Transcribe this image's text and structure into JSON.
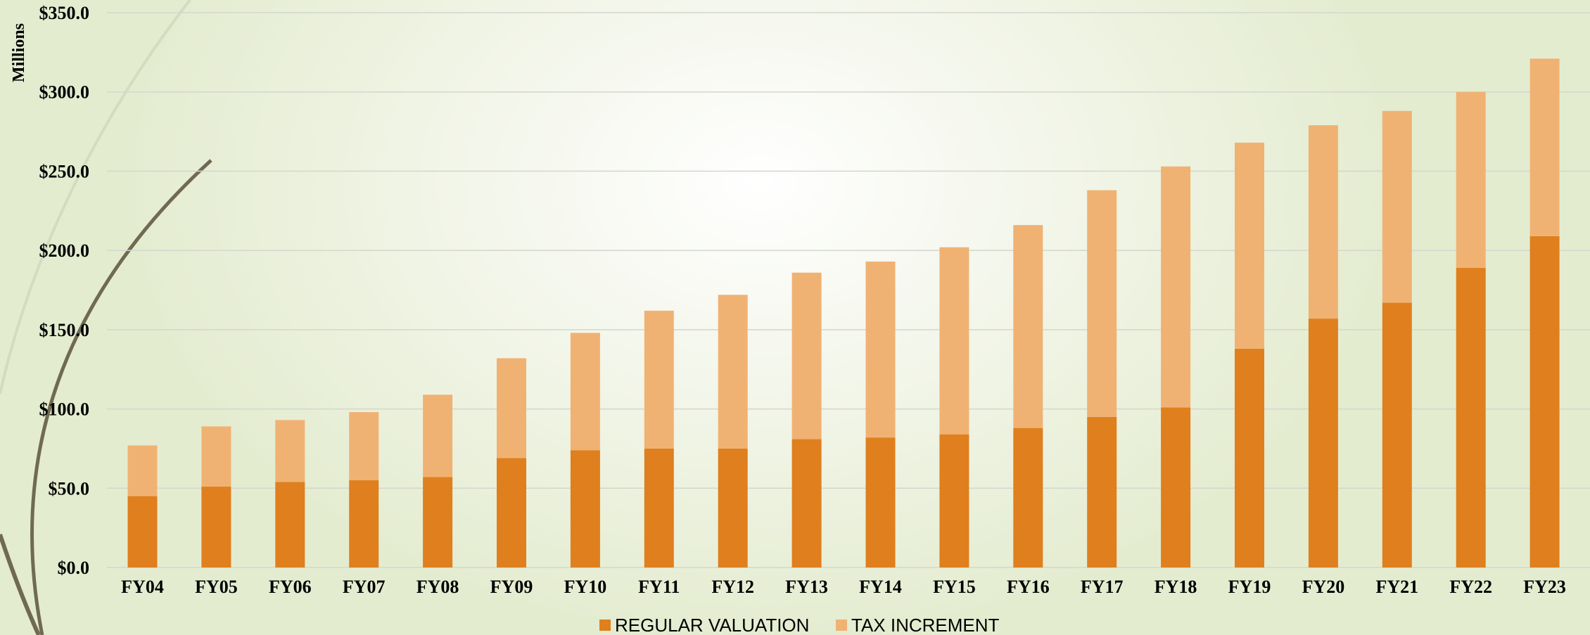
{
  "chart_data": {
    "type": "bar",
    "stacked": true,
    "ylabel": "Millions",
    "ylim": [
      0,
      350
    ],
    "yticks": [
      "$0.0",
      "$50.0",
      "$100.0",
      "$150.0",
      "$200.0",
      "$250.0",
      "$300.0",
      "$350.0"
    ],
    "grid": true,
    "legend_position": "bottom",
    "categories": [
      "FY04",
      "FY05",
      "FY06",
      "FY07",
      "FY08",
      "FY09",
      "FY10",
      "FY11",
      "FY12",
      "FY13",
      "FY14",
      "FY15",
      "FY16",
      "FY17",
      "FY18",
      "FY19",
      "FY20",
      "FY21",
      "FY22",
      "FY23"
    ],
    "series": [
      {
        "name": "REGULAR VALUATION",
        "color": "#df7f1d",
        "values": [
          45,
          51,
          54,
          55,
          57,
          69,
          74,
          75,
          75,
          81,
          82,
          84,
          88,
          95,
          101,
          138,
          157,
          167,
          189,
          209
        ]
      },
      {
        "name": "TAX INCREMENT",
        "color": "#f0b273",
        "values": [
          32,
          38,
          39,
          43,
          52,
          63,
          74,
          87,
          97,
          105,
          111,
          118,
          128,
          143,
          152,
          130,
          122,
          121,
          111,
          112
        ]
      }
    ]
  }
}
